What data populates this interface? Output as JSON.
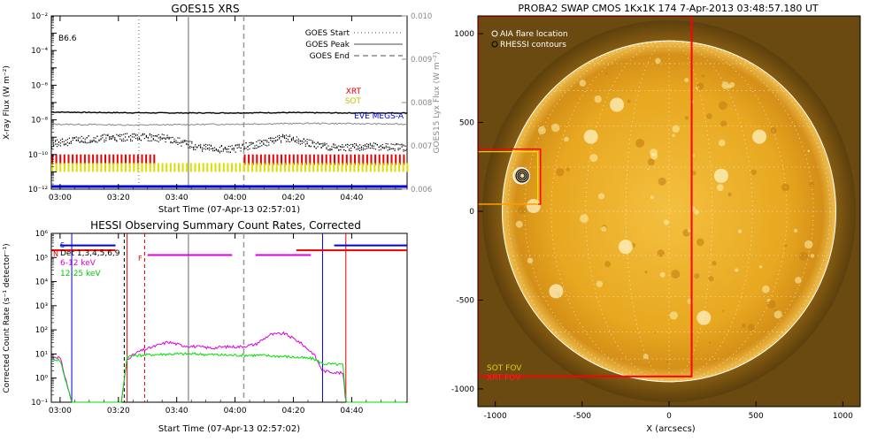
{
  "chart_data": [
    {
      "type": "line",
      "title": "GOES15 XRS",
      "xlabel": "Start Time (07-Apr-13 02:57:01)",
      "ylabel": "X-ray Flux (W m⁻²)",
      "y2label": "GOES15 Lyx Flux (W m⁻²)",
      "y_log": true,
      "ylim_exp": [
        -12,
        -2
      ],
      "yticks": [
        "10⁻¹²",
        "10⁻¹⁰",
        "10⁻⁸",
        "10⁻⁶",
        "10⁻⁴",
        "10⁻²"
      ],
      "y2lim": [
        0.006,
        0.01
      ],
      "y2ticks": [
        "0.006",
        "0.007",
        "0.008",
        "0.009",
        "0.010"
      ],
      "xlim_min": [
        0,
        122
      ],
      "xticks": [
        "03:00",
        "03:20",
        "03:40",
        "04:00",
        "04:20",
        "04:40"
      ],
      "class_label": "B6.6",
      "legend_lines": [
        "GOES Start",
        "GOES Peak",
        "GOES End"
      ],
      "legend_obs": [
        "XRT",
        "SOT",
        "EVE MEGS-A"
      ],
      "markers_min": {
        "start": 30,
        "peak": 47,
        "end": 66
      },
      "series": [
        {
          "name": "XRT",
          "kind": "coverage",
          "exp": -10.3,
          "intervals_min": [
            [
              0,
              35
            ],
            [
              66,
              122
            ]
          ]
        },
        {
          "name": "SOT",
          "kind": "coverage",
          "exp": -10.75,
          "intervals_min": [
            [
              0,
              122
            ]
          ]
        },
        {
          "name": "EVE MEGS-A",
          "kind": "level",
          "exp": -11.85,
          "intervals_min": [
            [
              0,
              122
            ]
          ]
        }
      ],
      "xray_long_exp": [
        [
          0,
          -7.55
        ],
        [
          20,
          -7.58
        ],
        [
          40,
          -7.6
        ],
        [
          60,
          -7.6
        ],
        [
          80,
          -7.58
        ],
        [
          100,
          -7.6
        ],
        [
          122,
          -7.6
        ]
      ],
      "xray_short_exp": [
        [
          0,
          -8.25
        ],
        [
          30,
          -8.3
        ],
        [
          60,
          -8.25
        ],
        [
          90,
          -8.2
        ],
        [
          122,
          -8.25
        ]
      ],
      "lyman_dots_exp": [
        [
          0,
          -9.4
        ],
        [
          10,
          -9.1
        ],
        [
          20,
          -9.0
        ],
        [
          30,
          -8.95
        ],
        [
          40,
          -9.05
        ],
        [
          50,
          -9.55
        ],
        [
          60,
          -9.7
        ],
        [
          70,
          -9.4
        ],
        [
          80,
          -9.0
        ],
        [
          90,
          -9.4
        ],
        [
          100,
          -9.6
        ],
        [
          110,
          -9.5
        ],
        [
          122,
          -9.6
        ]
      ]
    },
    {
      "type": "line",
      "title": "HESSI Observing Summary Count Rates, Corrected",
      "xlabel": "Start Time (07-Apr-13 02:57:02)",
      "ylabel": "Corrected Count Rate (s⁻¹ detector⁻¹)",
      "y_log": true,
      "ylim_exp": [
        -1,
        6
      ],
      "yticks": [
        "10⁻¹",
        "10⁰",
        "10¹",
        "10²",
        "10³",
        "10⁴",
        "10⁵",
        "10⁶"
      ],
      "xlim_min": [
        0,
        122
      ],
      "xticks": [
        "03:00",
        "03:20",
        "03:40",
        "04:00",
        "04:20",
        "04:40"
      ],
      "legend": [
        "Det 1,3,4,5,6,9",
        "6-12 keV",
        "12-25 keV"
      ],
      "flags": [
        "S",
        "N",
        "F"
      ],
      "markers_min": {
        "start": 30,
        "peak": 47,
        "end": 66
      },
      "eclipse_min": [
        [
          7,
          26
        ],
        [
          93,
          101
        ]
      ],
      "saa_level_exp": 5.5,
      "saa_intervals_min": [
        [
          3,
          22
        ],
        [
          97,
          122
        ]
      ],
      "night_level_exp": 5.3,
      "night_intervals_min": [
        [
          0,
          22
        ],
        [
          84,
          122
        ]
      ],
      "flare_flag_exp": 5.1,
      "flare_flag_intervals_min": [
        [
          33,
          62
        ],
        [
          70,
          89
        ]
      ],
      "series": [
        {
          "name": "6-12 keV",
          "points_exp": [
            [
              0,
              0.9
            ],
            [
              3,
              0.85
            ],
            [
              7,
              -1
            ],
            [
              24,
              -1
            ],
            [
              26,
              0.8
            ],
            [
              30,
              1.1
            ],
            [
              35,
              1.3
            ],
            [
              40,
              1.5
            ],
            [
              45,
              1.35
            ],
            [
              50,
              1.3
            ],
            [
              55,
              1.25
            ],
            [
              60,
              1.3
            ],
            [
              65,
              1.3
            ],
            [
              70,
              1.4
            ],
            [
              75,
              1.8
            ],
            [
              80,
              1.85
            ],
            [
              85,
              1.5
            ],
            [
              90,
              1.0
            ],
            [
              93,
              0.3
            ],
            [
              100,
              0.2
            ],
            [
              101,
              -1
            ],
            [
              122,
              -1
            ]
          ]
        },
        {
          "name": "12-25 keV",
          "points_exp": [
            [
              0,
              0.8
            ],
            [
              3,
              0.75
            ],
            [
              7,
              -1
            ],
            [
              24,
              -1
            ],
            [
              26,
              0.9
            ],
            [
              30,
              0.95
            ],
            [
              40,
              1.0
            ],
            [
              50,
              1.0
            ],
            [
              60,
              0.95
            ],
            [
              70,
              0.95
            ],
            [
              80,
              0.9
            ],
            [
              90,
              0.8
            ],
            [
              93,
              0.6
            ],
            [
              100,
              0.55
            ],
            [
              101,
              -1
            ],
            [
              122,
              -1
            ]
          ]
        }
      ]
    },
    {
      "type": "heatmap",
      "title": "PROBA2 SWAP CMOS 1Kx1K 174  7-Apr-2013 03:48:57.180 UT",
      "xlabel": "X (arcsecs)",
      "ylabel": "Y (arcsecs)",
      "xlim": [
        -1100,
        1100
      ],
      "ylim": [
        -1100,
        1100
      ],
      "xticks": [
        "-1000",
        "-500",
        "0",
        "500",
        "1000"
      ],
      "yticks": [
        "-1000",
        "-500",
        "0",
        "500",
        "1000"
      ],
      "legend": [
        "AIA flare location",
        "RHESSI contours"
      ],
      "fov_labels": [
        "SOT FOV",
        "XRT FOV"
      ],
      "solar_radius_arcsec": 960,
      "xrt_fov": {
        "x": [
          -1100,
          130
        ],
        "y": [
          -930,
          1100
        ]
      },
      "sot_fov": {
        "x": [
          -1100,
          -740
        ],
        "y": [
          40,
          350
        ]
      },
      "flare_center_arcsec": [
        -850,
        200
      ],
      "colors": {
        "sun_core": "#f8d060",
        "sun_edge": "#c88a10",
        "background": "#6a4a10",
        "fov": "#ff0000"
      }
    }
  ]
}
